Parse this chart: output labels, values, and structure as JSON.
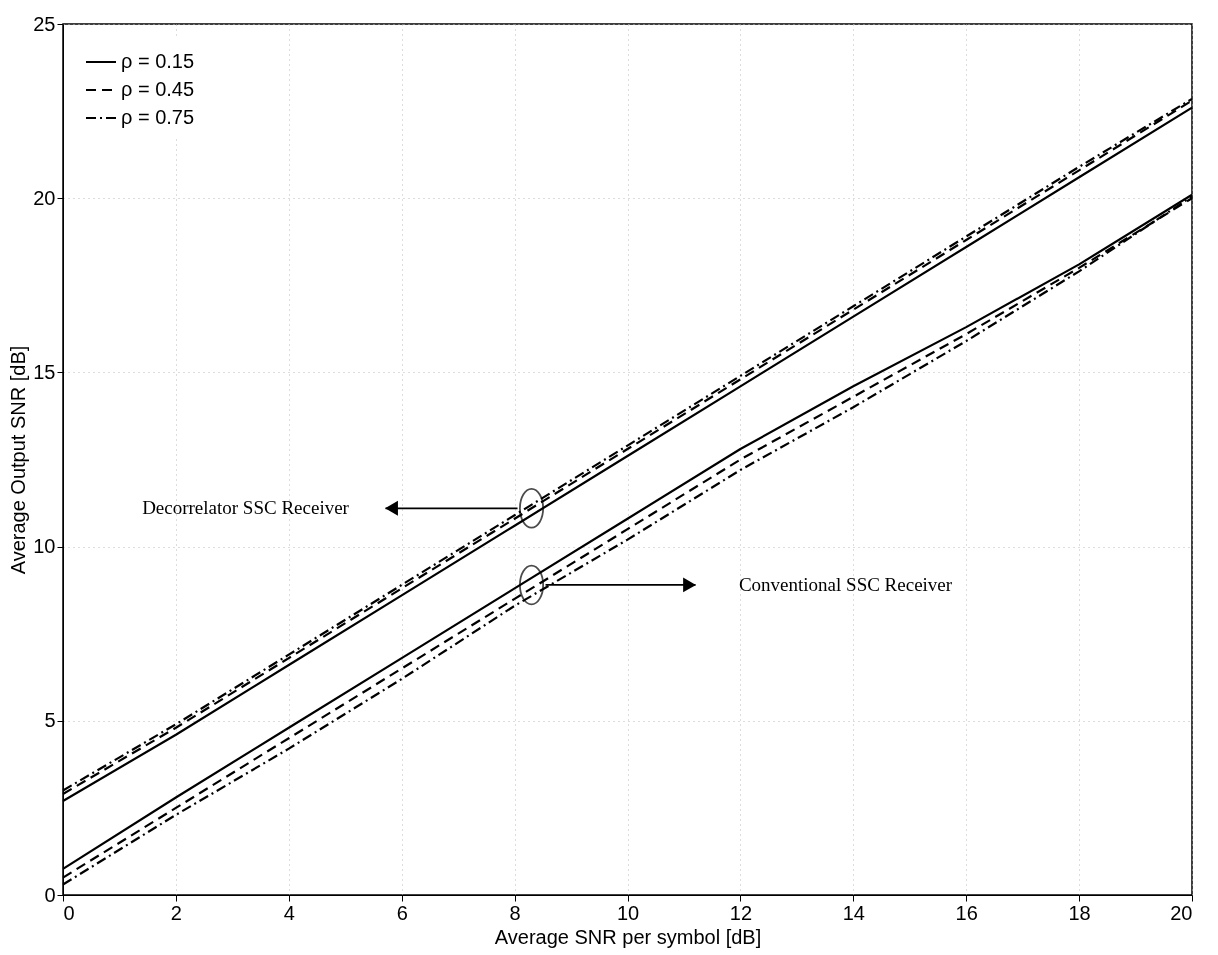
{
  "chart_data": {
    "type": "line",
    "xlabel": "Average SNR per symbol [dB]",
    "ylabel": "Average Output SNR [dB]",
    "x": [
      0,
      2,
      4,
      6,
      8,
      10,
      12,
      14,
      16,
      18,
      20
    ],
    "xlim": [
      0,
      20
    ],
    "xticks": [
      0,
      2,
      4,
      6,
      8,
      10,
      12,
      14,
      16,
      18,
      20
    ],
    "ylim": [
      0,
      25
    ],
    "yticks": [
      0,
      5,
      10,
      15,
      20,
      25
    ],
    "grid": true,
    "legend": "top left",
    "marker": "none",
    "series": [
      {
        "name": "ρ = 0.15",
        "color": "#000000",
        "line_style": "solid",
        "values": [
          2.7,
          4.6,
          6.6,
          8.6,
          10.6,
          12.6,
          14.6,
          16.6,
          18.6,
          20.6,
          22.6
        ]
      },
      {
        "name": "ρ = 0.45",
        "color": "#000000",
        "line_style": "dashed",
        "values": [
          2.9,
          4.8,
          6.8,
          8.8,
          10.8,
          12.8,
          14.8,
          16.8,
          18.8,
          20.8,
          22.8
        ]
      },
      {
        "name": "ρ = 0.75",
        "color": "#000000",
        "line_style": "dashdot",
        "values": [
          3.0,
          4.9,
          6.9,
          8.9,
          10.9,
          12.9,
          14.9,
          16.9,
          18.9,
          20.9,
          22.85
        ]
      },
      {
        "color": "#000000",
        "line_style": "solid",
        "values": [
          0.75,
          2.8,
          4.8,
          6.8,
          8.8,
          10.8,
          12.8,
          14.6,
          16.3,
          18.1,
          20.1
        ]
      },
      {
        "color": "#000000",
        "line_style": "dashed",
        "values": [
          0.5,
          2.5,
          4.5,
          6.5,
          8.5,
          10.5,
          12.5,
          14.3,
          16.1,
          18.0,
          20.0
        ]
      },
      {
        "color": "#000000",
        "line_style": "dashdot",
        "values": [
          0.3,
          2.3,
          4.2,
          6.2,
          8.3,
          10.2,
          12.2,
          14.0,
          15.9,
          17.9,
          20.05
        ]
      }
    ],
    "annotations": [
      "Decorrelator SSC Receiver",
      "Conventional SSC Receiver"
    ]
  }
}
